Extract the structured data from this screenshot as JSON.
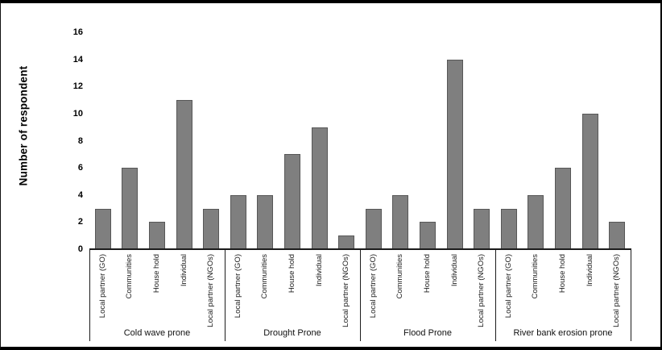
{
  "chart_data": {
    "type": "bar",
    "title": "",
    "xlabel": "",
    "ylabel": "Number of respondent",
    "ylim": [
      0,
      16
    ],
    "yticks": [
      0,
      2,
      4,
      6,
      8,
      10,
      12,
      14,
      16
    ],
    "grid": false,
    "legend": false,
    "bar_color": "#7f7f7f",
    "bar_edge_color": "#575757",
    "axis_color": "#1c1c1c",
    "categories": [
      "Local partner (GO)",
      "Communities",
      "House hold",
      "Individual",
      "Local partner (NGOs)"
    ],
    "groups": [
      {
        "label": "Cold wave prone",
        "values": [
          3,
          6,
          2,
          11,
          3
        ]
      },
      {
        "label": "Drought Prone",
        "values": [
          4,
          4,
          7,
          9,
          1
        ]
      },
      {
        "label": "Flood Prone",
        "values": [
          3,
          4,
          2,
          14,
          3
        ]
      },
      {
        "label": "River bank erosion prone",
        "values": [
          3,
          4,
          6,
          10,
          2
        ]
      }
    ]
  }
}
